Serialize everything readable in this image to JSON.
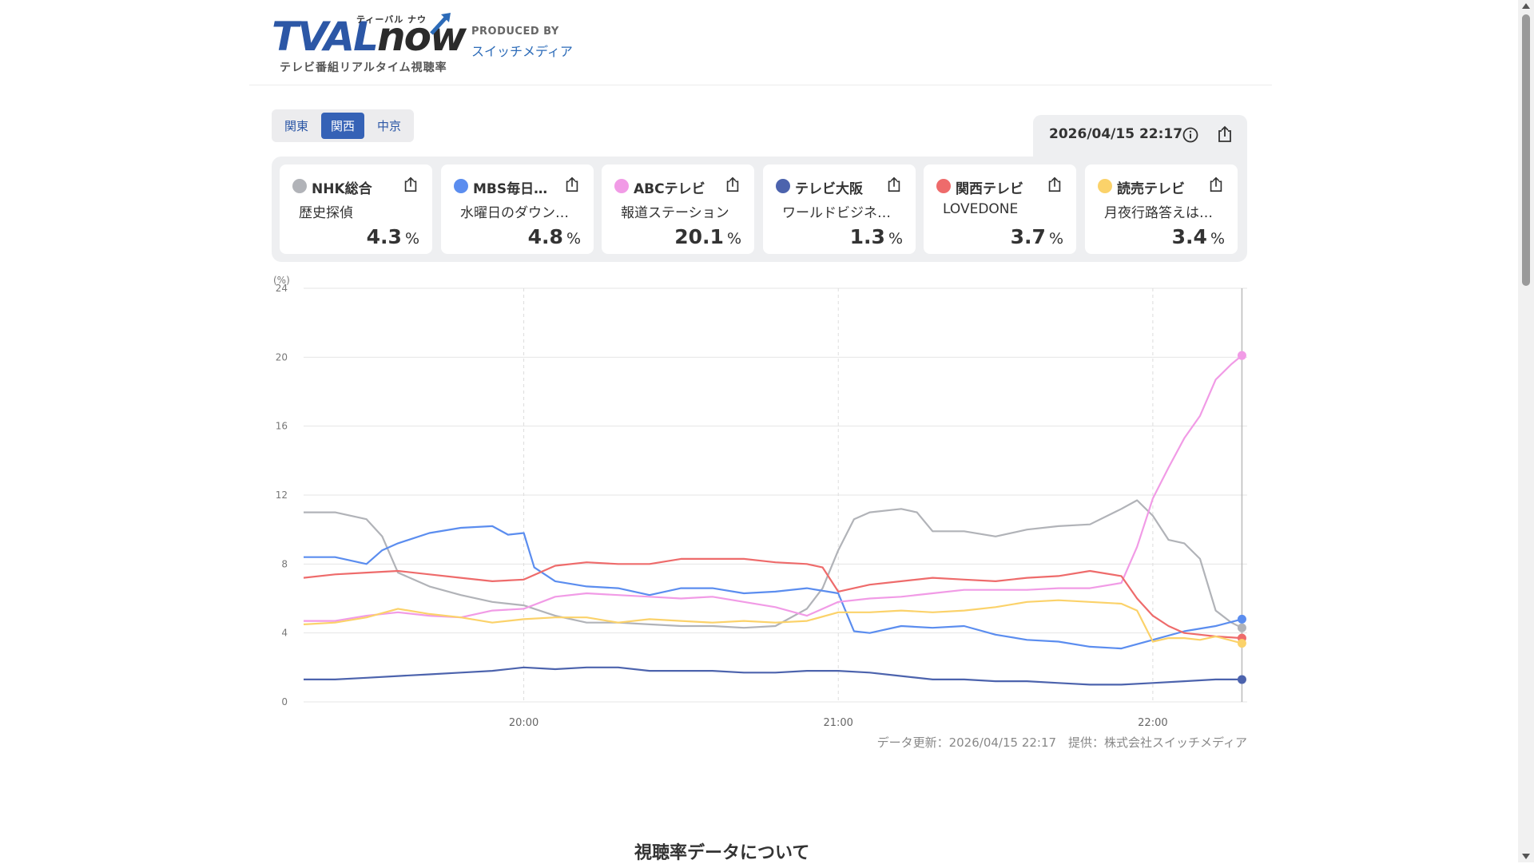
{
  "header": {
    "logo_main_tv": "TVAL",
    "logo_main_now": "now",
    "logo_kana": "ティーバル ナウ",
    "logo_sub": "テレビ番組リアルタイム視聴率",
    "produced_by": "PRODUCED BY",
    "producer": "スイッチメディア"
  },
  "region_tabs": [
    {
      "label": "関東",
      "active": false
    },
    {
      "label": "関西",
      "active": true
    },
    {
      "label": "中京",
      "active": false
    }
  ],
  "datetime": "2026/04/15 22:17",
  "cards": [
    {
      "station": "NHK総合",
      "program": "歴史探偵",
      "rating": "4.3",
      "unit": "%",
      "color": "#b1b3b8"
    },
    {
      "station": "MBS毎日…",
      "program": "水曜日のダウン…",
      "rating": "4.8",
      "unit": "%",
      "color": "#5b8def"
    },
    {
      "station": "ABCテレビ",
      "program": "報道ステーション",
      "rating": "20.1",
      "unit": "%",
      "color": "#f19be6"
    },
    {
      "station": "テレビ大阪",
      "program": "ワールドビジネ…",
      "rating": "1.3",
      "unit": "%",
      "color": "#4c63ad"
    },
    {
      "station": "関西テレビ",
      "program": "LOVEDONE",
      "rating": "3.7",
      "unit": "%",
      "color": "#ee6b6b"
    },
    {
      "station": "読売テレビ",
      "program": "月夜行路答えは…",
      "rating": "3.4",
      "unit": "%",
      "color": "#fbd26a"
    }
  ],
  "chart_footer": "データ更新：2026/04/15 22:17　提供：株式会社スイッチメディア",
  "about_heading": "視聴率データについて",
  "chart_data": {
    "type": "line",
    "ylabel": "(%)",
    "ylim": [
      0,
      24
    ],
    "yticks": [
      0,
      4,
      8,
      12,
      16,
      20,
      24
    ],
    "xlim": [
      "19:18",
      "22:18"
    ],
    "xticks": [
      "20:00",
      "21:00",
      "22:00"
    ],
    "grid": true,
    "series": [
      {
        "name": "NHK総合",
        "color": "#b1b3b8",
        "points": [
          [
            "19:18",
            11.0
          ],
          [
            "19:24",
            11.0
          ],
          [
            "19:30",
            10.6
          ],
          [
            "19:33",
            9.6
          ],
          [
            "19:36",
            7.5
          ],
          [
            "19:42",
            6.7
          ],
          [
            "19:48",
            6.2
          ],
          [
            "19:54",
            5.8
          ],
          [
            "20:00",
            5.6
          ],
          [
            "20:06",
            5.0
          ],
          [
            "20:12",
            4.6
          ],
          [
            "20:18",
            4.6
          ],
          [
            "20:24",
            4.5
          ],
          [
            "20:30",
            4.4
          ],
          [
            "20:36",
            4.4
          ],
          [
            "20:42",
            4.3
          ],
          [
            "20:48",
            4.4
          ],
          [
            "20:54",
            5.4
          ],
          [
            "20:57",
            6.6
          ],
          [
            "21:00",
            8.8
          ],
          [
            "21:03",
            10.6
          ],
          [
            "21:06",
            11.0
          ],
          [
            "21:12",
            11.2
          ],
          [
            "21:15",
            11.0
          ],
          [
            "21:18",
            9.9
          ],
          [
            "21:24",
            9.9
          ],
          [
            "21:30",
            9.6
          ],
          [
            "21:36",
            10.0
          ],
          [
            "21:42",
            10.2
          ],
          [
            "21:48",
            10.3
          ],
          [
            "21:54",
            11.2
          ],
          [
            "21:57",
            11.7
          ],
          [
            "22:00",
            10.8
          ],
          [
            "22:03",
            9.4
          ],
          [
            "22:06",
            9.2
          ],
          [
            "22:09",
            8.3
          ],
          [
            "22:12",
            5.3
          ],
          [
            "22:15",
            4.6
          ],
          [
            "22:17",
            4.3
          ]
        ]
      },
      {
        "name": "MBS毎日…",
        "color": "#5b8def",
        "points": [
          [
            "19:18",
            8.4
          ],
          [
            "19:24",
            8.4
          ],
          [
            "19:30",
            8.0
          ],
          [
            "19:33",
            8.8
          ],
          [
            "19:36",
            9.2
          ],
          [
            "19:42",
            9.8
          ],
          [
            "19:48",
            10.1
          ],
          [
            "19:54",
            10.2
          ],
          [
            "19:57",
            9.7
          ],
          [
            "20:00",
            9.8
          ],
          [
            "20:02",
            7.8
          ],
          [
            "20:06",
            7.0
          ],
          [
            "20:12",
            6.7
          ],
          [
            "20:18",
            6.6
          ],
          [
            "20:24",
            6.2
          ],
          [
            "20:30",
            6.6
          ],
          [
            "20:36",
            6.6
          ],
          [
            "20:42",
            6.3
          ],
          [
            "20:48",
            6.4
          ],
          [
            "20:54",
            6.6
          ],
          [
            "21:00",
            6.3
          ],
          [
            "21:03",
            4.1
          ],
          [
            "21:06",
            4.0
          ],
          [
            "21:12",
            4.4
          ],
          [
            "21:18",
            4.3
          ],
          [
            "21:24",
            4.4
          ],
          [
            "21:30",
            3.9
          ],
          [
            "21:36",
            3.6
          ],
          [
            "21:42",
            3.5
          ],
          [
            "21:48",
            3.2
          ],
          [
            "21:54",
            3.1
          ],
          [
            "22:00",
            3.6
          ],
          [
            "22:06",
            4.1
          ],
          [
            "22:12",
            4.4
          ],
          [
            "22:17",
            4.8
          ]
        ]
      },
      {
        "name": "ABCテレビ",
        "color": "#f19be6",
        "points": [
          [
            "19:18",
            4.7
          ],
          [
            "19:24",
            4.7
          ],
          [
            "19:30",
            5.0
          ],
          [
            "19:36",
            5.2
          ],
          [
            "19:42",
            5.0
          ],
          [
            "19:48",
            4.9
          ],
          [
            "19:54",
            5.3
          ],
          [
            "20:00",
            5.4
          ],
          [
            "20:06",
            6.1
          ],
          [
            "20:12",
            6.3
          ],
          [
            "20:18",
            6.2
          ],
          [
            "20:24",
            6.1
          ],
          [
            "20:30",
            6.0
          ],
          [
            "20:36",
            6.1
          ],
          [
            "20:42",
            5.8
          ],
          [
            "20:48",
            5.5
          ],
          [
            "20:54",
            5.0
          ],
          [
            "21:00",
            5.8
          ],
          [
            "21:06",
            6.0
          ],
          [
            "21:12",
            6.1
          ],
          [
            "21:18",
            6.3
          ],
          [
            "21:24",
            6.5
          ],
          [
            "21:30",
            6.5
          ],
          [
            "21:36",
            6.5
          ],
          [
            "21:42",
            6.6
          ],
          [
            "21:48",
            6.6
          ],
          [
            "21:54",
            6.9
          ],
          [
            "21:57",
            9.0
          ],
          [
            "22:00",
            11.8
          ],
          [
            "22:03",
            13.6
          ],
          [
            "22:06",
            15.3
          ],
          [
            "22:09",
            16.6
          ],
          [
            "22:12",
            18.7
          ],
          [
            "22:15",
            19.6
          ],
          [
            "22:17",
            20.1
          ]
        ]
      },
      {
        "name": "テレビ大阪",
        "color": "#4c63ad",
        "points": [
          [
            "19:18",
            1.3
          ],
          [
            "19:24",
            1.3
          ],
          [
            "19:30",
            1.4
          ],
          [
            "19:36",
            1.5
          ],
          [
            "19:42",
            1.6
          ],
          [
            "19:48",
            1.7
          ],
          [
            "19:54",
            1.8
          ],
          [
            "20:00",
            2.0
          ],
          [
            "20:06",
            1.9
          ],
          [
            "20:12",
            2.0
          ],
          [
            "20:18",
            2.0
          ],
          [
            "20:24",
            1.8
          ],
          [
            "20:30",
            1.8
          ],
          [
            "20:36",
            1.8
          ],
          [
            "20:42",
            1.7
          ],
          [
            "20:48",
            1.7
          ],
          [
            "20:54",
            1.8
          ],
          [
            "21:00",
            1.8
          ],
          [
            "21:06",
            1.7
          ],
          [
            "21:12",
            1.5
          ],
          [
            "21:18",
            1.3
          ],
          [
            "21:24",
            1.3
          ],
          [
            "21:30",
            1.2
          ],
          [
            "21:36",
            1.2
          ],
          [
            "21:42",
            1.1
          ],
          [
            "21:48",
            1.0
          ],
          [
            "21:54",
            1.0
          ],
          [
            "22:00",
            1.1
          ],
          [
            "22:06",
            1.2
          ],
          [
            "22:12",
            1.3
          ],
          [
            "22:17",
            1.3
          ]
        ]
      },
      {
        "name": "関西テレビ",
        "color": "#ee6b6b",
        "points": [
          [
            "19:18",
            7.2
          ],
          [
            "19:24",
            7.4
          ],
          [
            "19:30",
            7.5
          ],
          [
            "19:36",
            7.6
          ],
          [
            "19:42",
            7.4
          ],
          [
            "19:48",
            7.2
          ],
          [
            "19:54",
            7.0
          ],
          [
            "20:00",
            7.1
          ],
          [
            "20:06",
            7.9
          ],
          [
            "20:12",
            8.1
          ],
          [
            "20:18",
            8.0
          ],
          [
            "20:24",
            8.0
          ],
          [
            "20:30",
            8.3
          ],
          [
            "20:36",
            8.3
          ],
          [
            "20:42",
            8.3
          ],
          [
            "20:48",
            8.1
          ],
          [
            "20:54",
            8.0
          ],
          [
            "20:57",
            7.8
          ],
          [
            "21:00",
            6.4
          ],
          [
            "21:06",
            6.8
          ],
          [
            "21:12",
            7.0
          ],
          [
            "21:18",
            7.2
          ],
          [
            "21:24",
            7.1
          ],
          [
            "21:30",
            7.0
          ],
          [
            "21:36",
            7.2
          ],
          [
            "21:42",
            7.3
          ],
          [
            "21:48",
            7.6
          ],
          [
            "21:54",
            7.3
          ],
          [
            "21:57",
            6.0
          ],
          [
            "22:00",
            5.0
          ],
          [
            "22:03",
            4.4
          ],
          [
            "22:06",
            4.0
          ],
          [
            "22:09",
            3.9
          ],
          [
            "22:12",
            3.8
          ],
          [
            "22:17",
            3.7
          ]
        ]
      },
      {
        "name": "読売テレビ",
        "color": "#fbd26a",
        "points": [
          [
            "19:18",
            4.5
          ],
          [
            "19:24",
            4.6
          ],
          [
            "19:30",
            4.9
          ],
          [
            "19:36",
            5.4
          ],
          [
            "19:42",
            5.1
          ],
          [
            "19:48",
            4.9
          ],
          [
            "19:54",
            4.6
          ],
          [
            "20:00",
            4.8
          ],
          [
            "20:06",
            4.9
          ],
          [
            "20:12",
            4.9
          ],
          [
            "20:18",
            4.6
          ],
          [
            "20:24",
            4.8
          ],
          [
            "20:30",
            4.7
          ],
          [
            "20:36",
            4.6
          ],
          [
            "20:42",
            4.7
          ],
          [
            "20:48",
            4.6
          ],
          [
            "20:54",
            4.7
          ],
          [
            "21:00",
            5.2
          ],
          [
            "21:06",
            5.2
          ],
          [
            "21:12",
            5.3
          ],
          [
            "21:18",
            5.2
          ],
          [
            "21:24",
            5.3
          ],
          [
            "21:30",
            5.5
          ],
          [
            "21:36",
            5.8
          ],
          [
            "21:42",
            5.9
          ],
          [
            "21:48",
            5.8
          ],
          [
            "21:54",
            5.7
          ],
          [
            "21:57",
            5.3
          ],
          [
            "22:00",
            3.5
          ],
          [
            "22:03",
            3.7
          ],
          [
            "22:06",
            3.7
          ],
          [
            "22:09",
            3.6
          ],
          [
            "22:12",
            3.8
          ],
          [
            "22:17",
            3.4
          ]
        ]
      }
    ]
  }
}
